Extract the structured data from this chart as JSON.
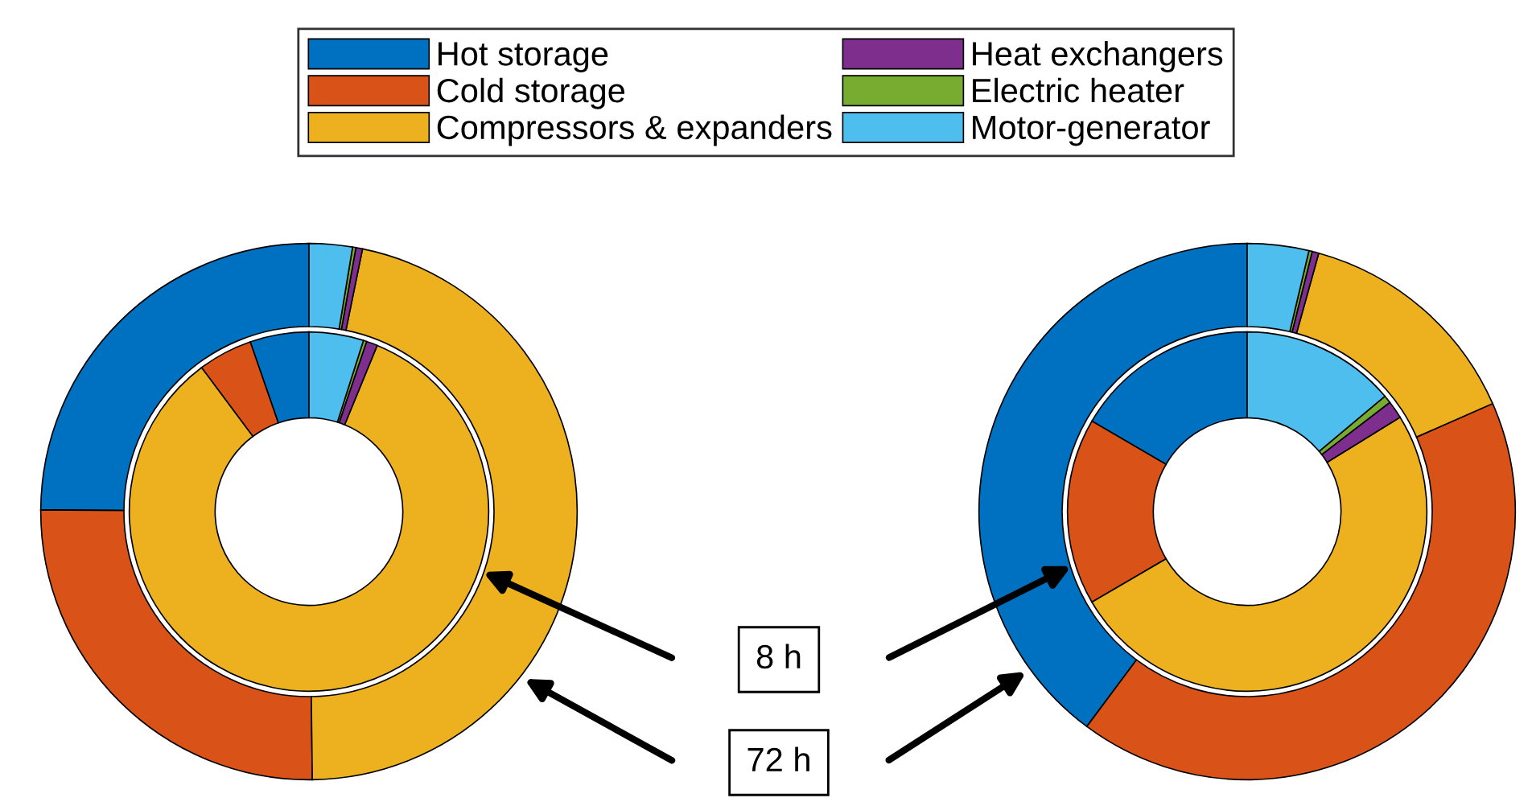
{
  "chart_data": [
    {
      "type": "donut",
      "categories": [
        "Hot storage",
        "Cold storage",
        "Compressors & expanders",
        "Heat exchangers",
        "Electric heater",
        "Motor-generator"
      ],
      "colors": [
        "#0070c0",
        "#d95319",
        "#edb120",
        "#7e2f8e",
        "#77ac30",
        "#4dbeee"
      ],
      "series": [
        {
          "values": [
            5.3,
            4.9,
            83.6,
            1.0,
            0.3,
            4.9
          ]
        },
        {
          "values": [
            24.9,
            25.3,
            46.6,
            0.4,
            0.2,
            2.6
          ]
        }
      ],
      "legend": "top",
      "annotations": [
        "8 h",
        "72 h"
      ]
    },
    {
      "type": "donut",
      "categories": [
        null,
        null,
        null,
        null,
        null,
        null
      ],
      "colors": [
        "#0070c0",
        "#d95319",
        "#edb120",
        "#7e2f8e",
        "#77ac30",
        "#4dbeee"
      ],
      "series": [
        {
          "values": [
            16.6,
            16.8,
            50.4,
            1.6,
            0.7,
            13.9
          ]
        },
        {
          "values": [
            39.8,
            41.8,
            14.1,
            0.4,
            0.2,
            3.7
          ]
        }
      ]
    }
  ]
}
